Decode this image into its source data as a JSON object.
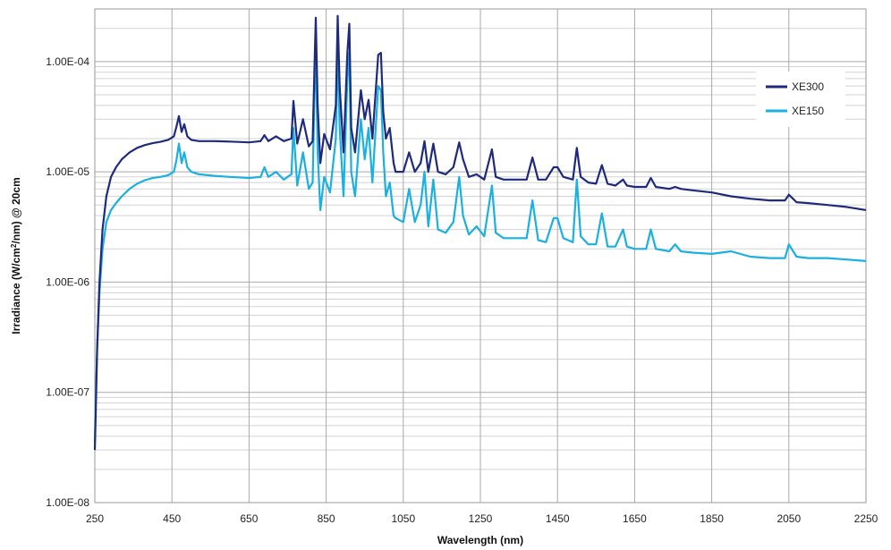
{
  "chart_data": {
    "type": "line",
    "title": "",
    "xlabel": "Wavelength (nm)",
    "ylabel_parts": [
      "Irradiance  (W/cm",
      "2",
      "/nm) @ 20cm"
    ],
    "xlim": [
      250,
      2250
    ],
    "ylim": [
      1e-08,
      0.0003
    ],
    "y_scale": "log",
    "x_ticks": [
      250,
      450,
      650,
      850,
      1050,
      1250,
      1450,
      1650,
      1850,
      2050,
      2250
    ],
    "x_tick_labels": [
      "250",
      "450",
      "650",
      "850",
      "1050",
      "1250",
      "1450",
      "1650",
      "1850",
      "2050",
      "2250"
    ],
    "y_ticks": [
      1e-08,
      1e-07,
      1e-06,
      1e-05,
      0.0001
    ],
    "y_tick_labels": [
      "1.00E-08",
      "1.00E-07",
      "1.00E-06",
      "1.00E-05",
      "1.00E-04"
    ],
    "grid": true,
    "legend_position": "upper-right",
    "series": [
      {
        "name": "XE300",
        "color": "#1f2a7c",
        "x": [
          250,
          252,
          256,
          262,
          270,
          280,
          292,
          305,
          320,
          340,
          360,
          380,
          400,
          420,
          440,
          455,
          462,
          468,
          475,
          482,
          490,
          500,
          520,
          560,
          600,
          650,
          680,
          690,
          700,
          720,
          740,
          760,
          765,
          775,
          790,
          805,
          815,
          820,
          823,
          828,
          835,
          845,
          860,
          875,
          880,
          885,
          895,
          905,
          910,
          915,
          925,
          940,
          950,
          960,
          970,
          985,
          992,
          998,
          1005,
          1015,
          1025,
          1030,
          1050,
          1065,
          1080,
          1095,
          1105,
          1115,
          1128,
          1140,
          1160,
          1180,
          1195,
          1205,
          1220,
          1240,
          1260,
          1280,
          1290,
          1310,
          1340,
          1370,
          1385,
          1400,
          1420,
          1440,
          1450,
          1465,
          1490,
          1500,
          1510,
          1530,
          1550,
          1565,
          1580,
          1600,
          1620,
          1630,
          1650,
          1680,
          1692,
          1705,
          1740,
          1755,
          1770,
          1800,
          1850,
          1900,
          1950,
          2000,
          2040,
          2050,
          2070,
          2100,
          2150,
          2200,
          2250
        ],
        "y": [
          3e-08,
          6e-08,
          2.5e-07,
          1e-06,
          3e-06,
          6e-06,
          9e-06,
          1.1e-05,
          1.3e-05,
          1.5e-05,
          1.65e-05,
          1.75e-05,
          1.82e-05,
          1.87e-05,
          1.95e-05,
          2.1e-05,
          2.6e-05,
          3.2e-05,
          2.3e-05,
          2.7e-05,
          2.1e-05,
          1.95e-05,
          1.9e-05,
          1.9e-05,
          1.88e-05,
          1.85e-05,
          1.9e-05,
          2.15e-05,
          1.9e-05,
          2.1e-05,
          1.9e-05,
          2e-05,
          4.4e-05,
          1.8e-05,
          3e-05,
          1.7e-05,
          1.9e-05,
          0.0001,
          0.00025,
          4e-05,
          1.2e-05,
          2.2e-05,
          1.6e-05,
          4e-05,
          0.00026,
          6e-05,
          1.5e-05,
          0.00012,
          0.00022,
          2.5e-05,
          1.5e-05,
          5.5e-05,
          3e-05,
          4.5e-05,
          2e-05,
          0.000115,
          0.00012,
          3.5e-05,
          2e-05,
          2.5e-05,
          1.2e-05,
          1e-05,
          1e-05,
          1.5e-05,
          1e-05,
          1.2e-05,
          1.9e-05,
          1e-05,
          1.8e-05,
          1e-05,
          9.5e-06,
          1.1e-05,
          1.85e-05,
          1.3e-05,
          9e-06,
          9.5e-06,
          8.5e-06,
          1.6e-05,
          9e-06,
          8.5e-06,
          8.5e-06,
          8.5e-06,
          1.35e-05,
          8.5e-06,
          8.5e-06,
          1.1e-05,
          1.1e-05,
          9e-06,
          8.5e-06,
          1.65e-05,
          9e-06,
          8e-06,
          7.8e-06,
          1.15e-05,
          7.8e-06,
          7.5e-06,
          8.5e-06,
          7.5e-06,
          7.3e-06,
          7.3e-06,
          8.8e-06,
          7.3e-06,
          7e-06,
          7.3e-06,
          7e-06,
          6.8e-06,
          6.5e-06,
          6e-06,
          5.7e-06,
          5.5e-06,
          5.5e-06,
          6.2e-06,
          5.3e-06,
          5.2e-06,
          5e-06,
          4.8e-06,
          4.5e-06
        ]
      },
      {
        "name": "XE150",
        "color": "#1ab0e0",
        "x": [
          250,
          252,
          256,
          262,
          270,
          280,
          292,
          305,
          320,
          340,
          360,
          380,
          400,
          420,
          440,
          455,
          462,
          468,
          475,
          482,
          490,
          500,
          520,
          560,
          600,
          650,
          680,
          690,
          700,
          720,
          740,
          760,
          765,
          775,
          790,
          805,
          815,
          820,
          823,
          828,
          835,
          845,
          860,
          875,
          880,
          885,
          895,
          905,
          910,
          915,
          925,
          940,
          950,
          960,
          970,
          985,
          992,
          998,
          1005,
          1015,
          1025,
          1030,
          1050,
          1065,
          1080,
          1095,
          1105,
          1115,
          1128,
          1140,
          1160,
          1180,
          1195,
          1205,
          1220,
          1240,
          1260,
          1280,
          1290,
          1310,
          1340,
          1370,
          1385,
          1400,
          1420,
          1440,
          1450,
          1465,
          1490,
          1500,
          1510,
          1530,
          1550,
          1565,
          1580,
          1600,
          1620,
          1630,
          1650,
          1680,
          1692,
          1705,
          1740,
          1755,
          1770,
          1800,
          1850,
          1900,
          1950,
          2000,
          2040,
          2050,
          2070,
          2100,
          2150,
          2200,
          2250
        ],
        "y": [
          3.5e-08,
          8e-08,
          2.5e-07,
          8e-07,
          2e-06,
          3.5e-06,
          4.5e-06,
          5.2e-06,
          6e-06,
          7e-06,
          7.8e-06,
          8.4e-06,
          8.8e-06,
          9e-06,
          9.3e-06,
          1e-05,
          1.3e-05,
          1.8e-05,
          1.2e-05,
          1.5e-05,
          1.1e-05,
          1e-05,
          9.5e-06,
          9.2e-06,
          9e-06,
          8.8e-06,
          9e-06,
          1.1e-05,
          9e-06,
          1e-05,
          8.5e-06,
          9.5e-06,
          2.5e-05,
          7.5e-06,
          1.5e-05,
          7e-06,
          8e-06,
          6e-05,
          0.000125,
          1.5e-05,
          4.5e-06,
          9e-06,
          6.5e-06,
          2e-05,
          0.00014,
          2.5e-05,
          6e-06,
          7e-05,
          0.00012,
          1e-05,
          6e-06,
          3e-05,
          1.3e-05,
          2.5e-05,
          8e-06,
          6e-05,
          5.5e-05,
          1.5e-05,
          6e-06,
          8e-06,
          4e-06,
          3.8e-06,
          3.5e-06,
          7e-06,
          3.5e-06,
          5e-06,
          1e-05,
          3.2e-06,
          8.5e-06,
          3e-06,
          2.8e-06,
          3.5e-06,
          9e-06,
          4e-06,
          2.7e-06,
          3.2e-06,
          2.6e-06,
          7.5e-06,
          2.8e-06,
          2.5e-06,
          2.5e-06,
          2.5e-06,
          5.5e-06,
          2.4e-06,
          2.3e-06,
          3.8e-06,
          3.8e-06,
          2.5e-06,
          2.3e-06,
          8.5e-06,
          2.6e-06,
          2.2e-06,
          2.2e-06,
          4.2e-06,
          2.1e-06,
          2.1e-06,
          3e-06,
          2.1e-06,
          2e-06,
          2e-06,
          3e-06,
          2e-06,
          1.9e-06,
          2.2e-06,
          1.9e-06,
          1.85e-06,
          1.8e-06,
          1.9e-06,
          1.7e-06,
          1.65e-06,
          1.65e-06,
          2.2e-06,
          1.7e-06,
          1.65e-06,
          1.65e-06,
          1.6e-06,
          1.55e-06
        ]
      }
    ]
  }
}
